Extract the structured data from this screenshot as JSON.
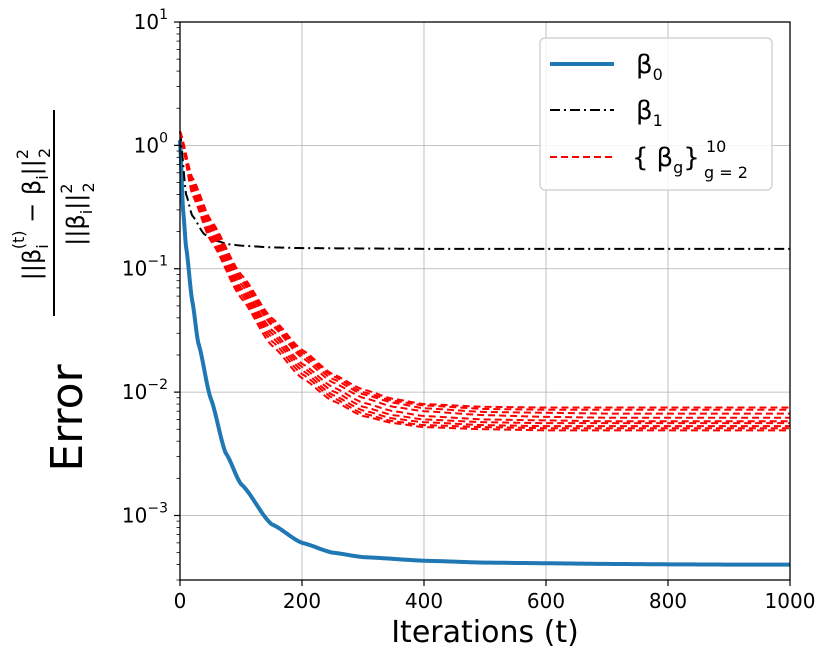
{
  "chart_data": {
    "type": "line",
    "x_scale": "linear",
    "y_scale": "log",
    "xlim": [
      0,
      1000
    ],
    "ylim": [
      0.0003,
      10
    ],
    "x_ticks": [
      "0",
      "200",
      "400",
      "600",
      "800",
      "1000"
    ],
    "y_ticks": [
      {
        "base": "10",
        "exp": "1"
      },
      {
        "base": "10",
        "exp": "0"
      },
      {
        "base": "10",
        "exp": "−1"
      },
      {
        "base": "10",
        "exp": "−2"
      },
      {
        "base": "10",
        "exp": "−3"
      }
    ],
    "xlabel": "Iterations (t)",
    "ylabel": "Error",
    "ylabel_fraction": {
      "numerator": "||βi(t) − βi||22",
      "denominator": "||βi||22"
    },
    "grid": true,
    "legend_position": "top-right",
    "series": [
      {
        "name": "β0",
        "color": "#1f77b4",
        "style": "solid",
        "x": [
          0,
          5,
          10,
          20,
          30,
          50,
          75,
          100,
          150,
          200,
          250,
          300,
          400,
          500,
          600,
          700,
          800,
          900,
          1000
        ],
        "y": [
          1.1,
          0.3,
          0.15,
          0.055,
          0.025,
          0.009,
          0.0032,
          0.0018,
          0.00085,
          0.0006,
          0.0005,
          0.00046,
          0.00043,
          0.000415,
          0.00041,
          0.000405,
          0.000402,
          0.0004,
          0.0004
        ]
      },
      {
        "name": "β1",
        "color": "#000000",
        "style": "dashdot",
        "x": [
          0,
          10,
          20,
          40,
          60,
          80,
          100,
          150,
          200,
          300,
          400,
          600,
          800,
          1000
        ],
        "y": [
          1.3,
          0.4,
          0.27,
          0.19,
          0.168,
          0.158,
          0.154,
          0.149,
          0.147,
          0.146,
          0.145,
          0.145,
          0.145,
          0.145
        ]
      },
      {
        "name": "{ βg } g = 2 10",
        "color": "#ff0000",
        "style": "dashed",
        "curves": [
          {
            "x": [
              0,
              20,
              50,
              100,
              150,
              200,
              250,
              300,
              350,
              400,
              500,
              600,
              700,
              800,
              1000
            ],
            "y": [
              1.3,
              0.55,
              0.25,
              0.09,
              0.04,
              0.022,
              0.014,
              0.0105,
              0.0088,
              0.008,
              0.0076,
              0.0075,
              0.0075,
              0.0075,
              0.0075
            ]
          },
          {
            "x": [
              0,
              20,
              50,
              100,
              150,
              200,
              250,
              300,
              350,
              400,
              500,
              600,
              700,
              800,
              1000
            ],
            "y": [
              1.3,
              0.52,
              0.24,
              0.085,
              0.038,
              0.021,
              0.0135,
              0.01,
              0.0085,
              0.0078,
              0.0073,
              0.0072,
              0.0072,
              0.0072,
              0.0072
            ]
          },
          {
            "x": [
              0,
              20,
              50,
              100,
              150,
              200,
              250,
              300,
              350,
              400,
              500,
              600,
              700,
              800,
              1000
            ],
            "y": [
              1.3,
              0.5,
              0.22,
              0.08,
              0.035,
              0.019,
              0.012,
              0.009,
              0.0076,
              0.007,
              0.0065,
              0.0063,
              0.0062,
              0.0062,
              0.0062
            ]
          },
          {
            "x": [
              0,
              20,
              50,
              100,
              150,
              200,
              250,
              300,
              350,
              400,
              500,
              600,
              700,
              800,
              1000
            ],
            "y": [
              1.3,
              0.48,
              0.21,
              0.075,
              0.032,
              0.017,
              0.011,
              0.0082,
              0.007,
              0.0064,
              0.006,
              0.0059,
              0.0058,
              0.0058,
              0.0058
            ]
          },
          {
            "x": [
              0,
              20,
              50,
              100,
              150,
              200,
              250,
              300,
              350,
              400,
              500,
              600,
              700,
              800,
              1000
            ],
            "y": [
              1.3,
              0.46,
              0.2,
              0.07,
              0.03,
              0.016,
              0.0102,
              0.0076,
              0.0065,
              0.006,
              0.0057,
              0.0056,
              0.0056,
              0.0056,
              0.0056
            ]
          },
          {
            "x": [
              0,
              20,
              50,
              100,
              150,
              200,
              250,
              300,
              350,
              400,
              500,
              600,
              700,
              800,
              1000
            ],
            "y": [
              1.3,
              0.44,
              0.19,
              0.066,
              0.028,
              0.015,
              0.0095,
              0.0071,
              0.0061,
              0.0057,
              0.0054,
              0.0053,
              0.0053,
              0.0053,
              0.0053
            ]
          },
          {
            "x": [
              0,
              20,
              50,
              100,
              150,
              200,
              250,
              300,
              350,
              400,
              500,
              600,
              700,
              800,
              1000
            ],
            "y": [
              1.3,
              0.42,
              0.18,
              0.062,
              0.026,
              0.014,
              0.009,
              0.0067,
              0.0058,
              0.0054,
              0.0052,
              0.0051,
              0.0051,
              0.0051,
              0.0051
            ]
          },
          {
            "x": [
              0,
              20,
              50,
              100,
              150,
              200,
              250,
              300,
              350,
              400,
              500,
              600,
              700,
              800,
              1000
            ],
            "y": [
              1.3,
              0.4,
              0.17,
              0.058,
              0.024,
              0.013,
              0.0085,
              0.0064,
              0.0056,
              0.0052,
              0.005,
              0.0049,
              0.0049,
              0.0049,
              0.0049
            ]
          },
          {
            "x": [
              0,
              20,
              50,
              100,
              150,
              200,
              250,
              300,
              350,
              400,
              500,
              600,
              700,
              800,
              1000
            ],
            "y": [
              1.3,
              0.5,
              0.23,
              0.082,
              0.036,
              0.02,
              0.0128,
              0.0096,
              0.0082,
              0.0074,
              0.0069,
              0.0068,
              0.0067,
              0.0067,
              0.0067
            ]
          }
        ]
      }
    ],
    "legend": [
      {
        "symbol": "β",
        "sub": "0"
      },
      {
        "symbol": "β",
        "sub": "1"
      },
      {
        "open": "{",
        "symbol": "β",
        "sub": "g",
        "close": "}",
        "sup": "10",
        "sub2": "g = 2"
      }
    ]
  }
}
